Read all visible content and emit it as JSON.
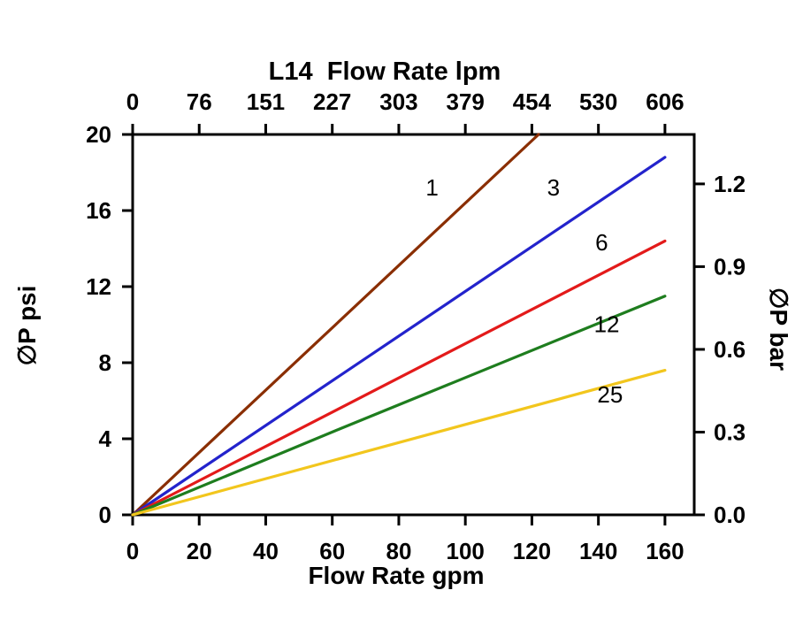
{
  "chart_data": {
    "type": "line",
    "title": "L14  Flow Rate lpm",
    "top_axis": {
      "unit": "lpm",
      "ticks": [
        {
          "label": "0",
          "gpm": 0
        },
        {
          "label": "76",
          "gpm": 20
        },
        {
          "label": "151",
          "gpm": 40
        },
        {
          "label": "227",
          "gpm": 60
        },
        {
          "label": "303",
          "gpm": 80
        },
        {
          "label": "379",
          "gpm": 100
        },
        {
          "label": "454",
          "gpm": 120
        },
        {
          "label": "530",
          "gpm": 140
        },
        {
          "label": "606",
          "gpm": 160
        }
      ]
    },
    "bottom_axis": {
      "title": "Flow Rate gpm",
      "tick_values": [
        0,
        20,
        40,
        60,
        80,
        100,
        120,
        140,
        160
      ]
    },
    "left_axis": {
      "title": "∅P psi",
      "tick_values": [
        0,
        4,
        8,
        12,
        16,
        20
      ]
    },
    "right_axis": {
      "title": "∅P bar",
      "ticks": [
        {
          "label": "0.0",
          "psi": 0
        },
        {
          "label": "0.3",
          "psi": 4.35
        },
        {
          "label": "0.6",
          "psi": 8.7
        },
        {
          "label": "0.9",
          "psi": 13.05
        },
        {
          "label": "1.2",
          "psi": 17.4
        }
      ]
    },
    "xlim": [
      0,
      168.8
    ],
    "ylim": [
      0,
      20
    ],
    "grid": false,
    "series": [
      {
        "name": "1",
        "color": "#8a2e01",
        "points": [
          [
            0,
            0
          ],
          [
            122,
            20
          ]
        ],
        "label_at": [
          90,
          16.8
        ]
      },
      {
        "name": "3",
        "color": "#2323cc",
        "points": [
          [
            0,
            0
          ],
          [
            160,
            18.8
          ]
        ],
        "label_at": [
          126.5,
          16.8
        ]
      },
      {
        "name": "6",
        "color": "#e31a1a",
        "points": [
          [
            0,
            0
          ],
          [
            160,
            14.4
          ]
        ],
        "label_at": [
          141,
          13.9
        ]
      },
      {
        "name": "12",
        "color": "#1e7d1e",
        "points": [
          [
            0,
            0
          ],
          [
            62,
            4.5
          ],
          [
            160,
            11.5
          ]
        ],
        "label_at": [
          142.5,
          9.6
        ]
      },
      {
        "name": "25",
        "color": "#f2c61d",
        "points": [
          [
            0,
            0
          ],
          [
            160,
            7.6
          ]
        ],
        "label_at": [
          143.5,
          5.9
        ]
      }
    ]
  }
}
